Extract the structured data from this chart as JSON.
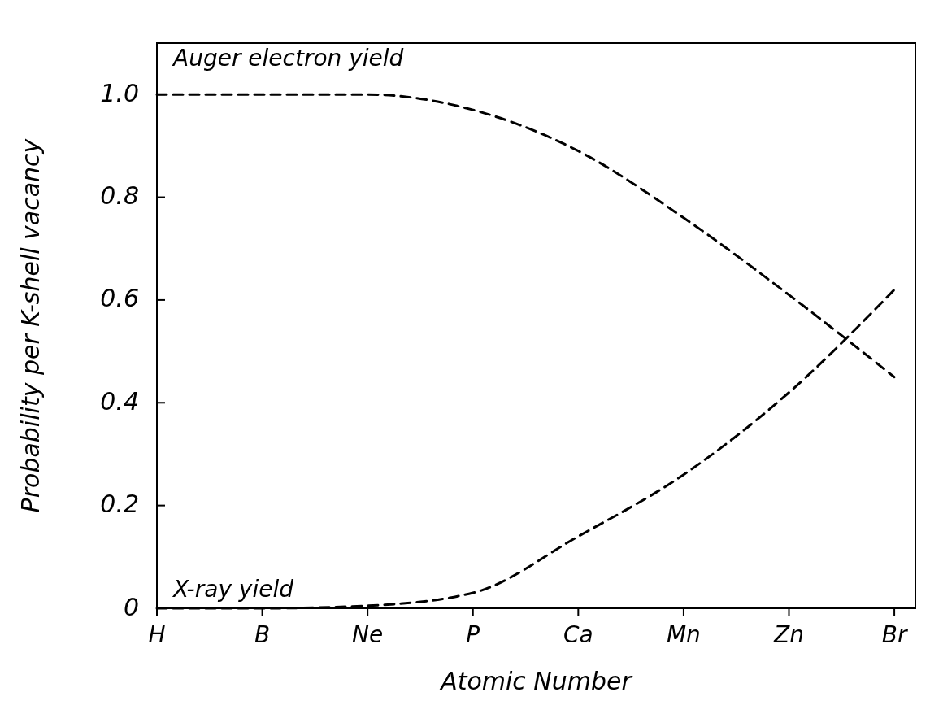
{
  "chart_data": {
    "type": "line",
    "xlabel": "Atomic Number",
    "ylabel": "Probability per K-shell vacancy",
    "categories": [
      "H",
      "B",
      "Ne",
      "P",
      "Ca",
      "Mn",
      "Zn",
      "Br"
    ],
    "ylim": [
      0,
      1.1
    ],
    "yticks": [
      0,
      0.2,
      0.4,
      0.6,
      0.8,
      {
        "value": 1,
        "label": "1.0"
      }
    ],
    "series": [
      {
        "name": "Auger electron yield",
        "color": "#000000",
        "values": [
          1.0,
          1.0,
          1.0,
          0.97,
          0.89,
          0.76,
          0.61,
          0.45
        ]
      },
      {
        "name": "X-ray yield",
        "color": "#000000",
        "values": [
          0,
          0,
          0.005,
          0.03,
          0.14,
          0.26,
          0.42,
          0.62
        ]
      }
    ],
    "line_style": "dashed",
    "grid": false
  }
}
